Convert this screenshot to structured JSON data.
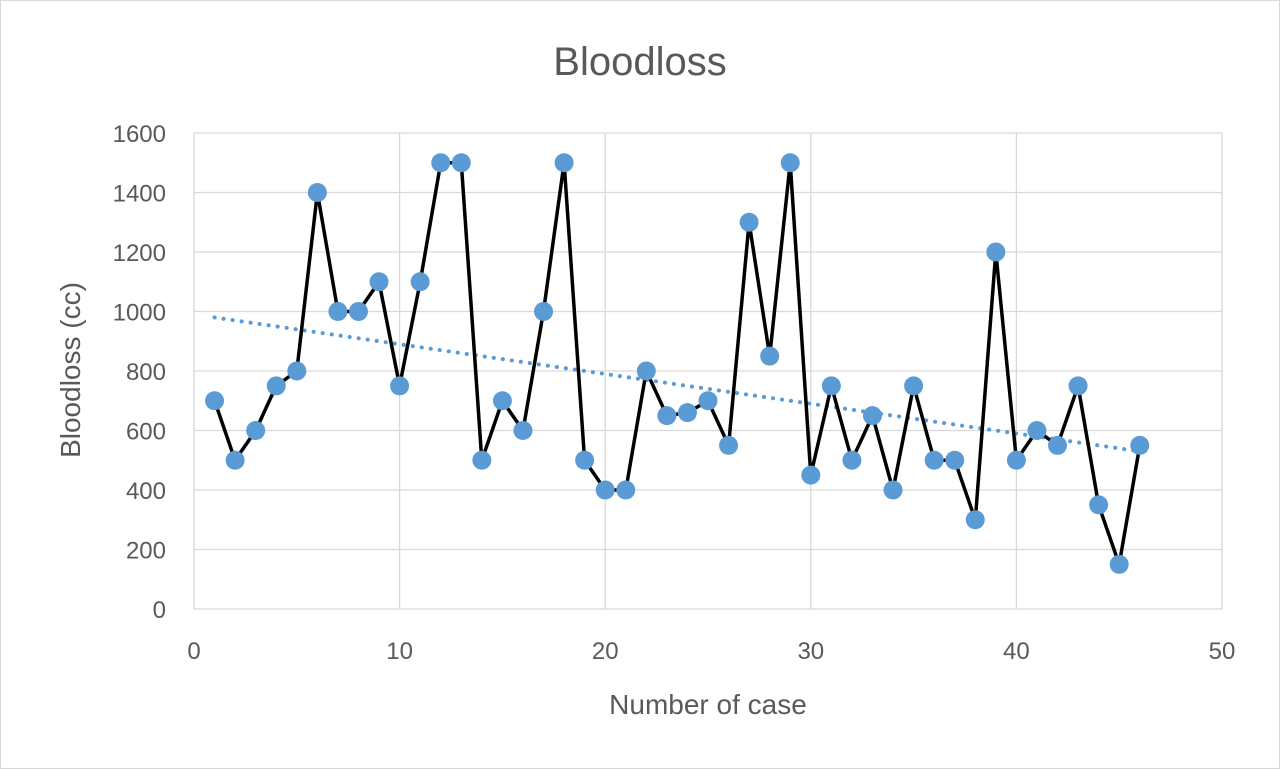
{
  "chart_data": {
    "type": "scatter",
    "title": "Bloodloss",
    "xlabel": "Number of case",
    "ylabel": "Bloodloss (cc)",
    "xlim": [
      0,
      50
    ],
    "ylim": [
      0,
      1600
    ],
    "xticks": [
      0,
      10,
      20,
      30,
      40,
      50
    ],
    "yticks": [
      0,
      200,
      400,
      600,
      800,
      1000,
      1200,
      1400,
      1600
    ],
    "grid": true,
    "legend": "none",
    "series": [
      {
        "style": "line-with-markers",
        "line_color": "#000000",
        "marker_color": "#5b9bd5",
        "x": [
          1,
          2,
          3,
          4,
          5,
          6,
          7,
          8,
          9,
          10,
          11,
          12,
          13,
          14,
          15,
          16,
          17,
          18,
          19,
          20,
          21,
          22,
          23,
          24,
          25,
          26,
          27,
          28,
          29,
          30,
          31,
          32,
          33,
          34,
          35,
          36,
          37,
          38,
          39,
          40,
          41,
          42,
          43,
          44,
          45,
          46
        ],
        "y": [
          700,
          500,
          600,
          750,
          800,
          1400,
          1000,
          1000,
          1100,
          750,
          1100,
          1500,
          1500,
          500,
          700,
          600,
          1000,
          1500,
          500,
          400,
          400,
          800,
          650,
          660,
          700,
          550,
          1300,
          850,
          1500,
          450,
          750,
          500,
          650,
          400,
          750,
          500,
          500,
          300,
          1200,
          500,
          600,
          550,
          750,
          350,
          150,
          550
        ]
      }
    ],
    "trendline": {
      "type": "linear",
      "style": "dotted",
      "color": "#5b9bd5",
      "x": [
        1,
        46
      ],
      "y": [
        980,
        530
      ]
    }
  }
}
